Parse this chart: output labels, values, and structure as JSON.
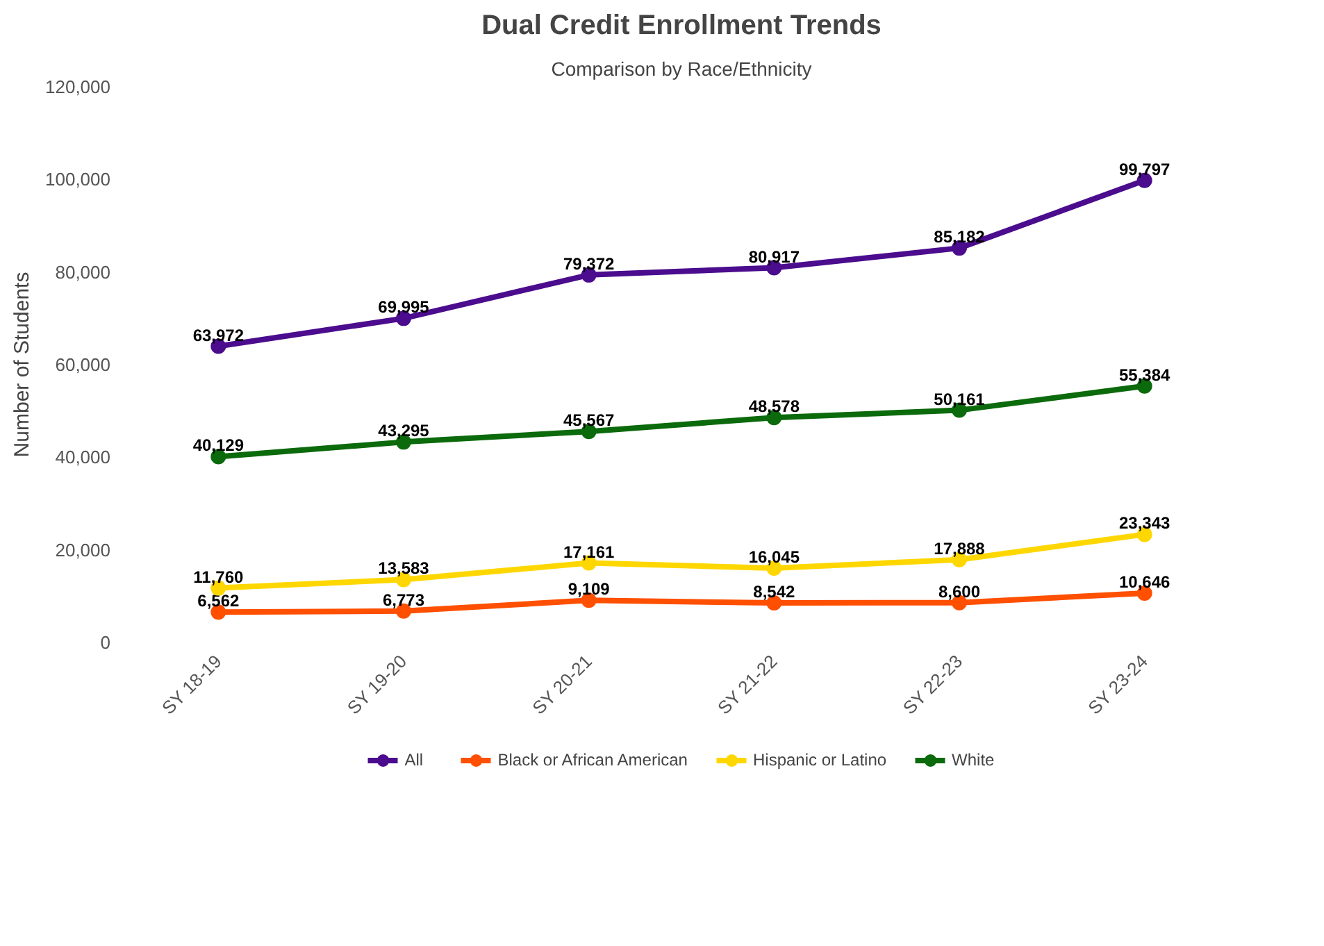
{
  "chart_data": {
    "type": "line",
    "title": "Dual Credit Enrollment Trends",
    "subtitle": "Comparison by Race/Ethnicity",
    "ylabel": "Number of Students",
    "categories": [
      "SY 18-19",
      "SY 19-20",
      "SY 20-21",
      "SY 21-22",
      "SY 22-23",
      "SY 23-24"
    ],
    "series": [
      {
        "name": "All",
        "color": "#4b0c8e",
        "values": [
          63972,
          69995,
          79372,
          80917,
          85182,
          99797
        ],
        "value_labels": [
          "63,972",
          "69,995",
          "79,372",
          "80,917",
          "85,182",
          "99,797"
        ]
      },
      {
        "name": "Black or African American",
        "color": "#ff4f00",
        "values": [
          6562,
          6773,
          9109,
          8542,
          8600,
          10646
        ],
        "value_labels": [
          "6,562",
          "6,773",
          "9,109",
          "8,542",
          "8,600",
          "10,646"
        ]
      },
      {
        "name": "Hispanic or Latino",
        "color": "#ffd700",
        "values": [
          11760,
          13583,
          17161,
          16045,
          17888,
          23343
        ],
        "value_labels": [
          "11,760",
          "13,583",
          "17,161",
          "16,045",
          "17,888",
          "23,343"
        ]
      },
      {
        "name": "White",
        "color": "#0b6a0b",
        "values": [
          40129,
          43295,
          45567,
          48578,
          50161,
          55384
        ],
        "value_labels": [
          "40,129",
          "43,295",
          "45,567",
          "48,578",
          "50,161",
          "55,384"
        ]
      }
    ],
    "ylim": [
      0,
      120000
    ],
    "yticks": [
      {
        "value": 0,
        "label": "0"
      },
      {
        "value": 20000,
        "label": "20,000"
      },
      {
        "value": 40000,
        "label": "40,000"
      },
      {
        "value": 60000,
        "label": "60,000"
      },
      {
        "value": 80000,
        "label": "80,000"
      },
      {
        "value": 100000,
        "label": "100,000"
      },
      {
        "value": 120000,
        "label": "120,000"
      }
    ],
    "grid": false,
    "legend": "bottom",
    "marker": "circle",
    "line_style": "solid"
  }
}
